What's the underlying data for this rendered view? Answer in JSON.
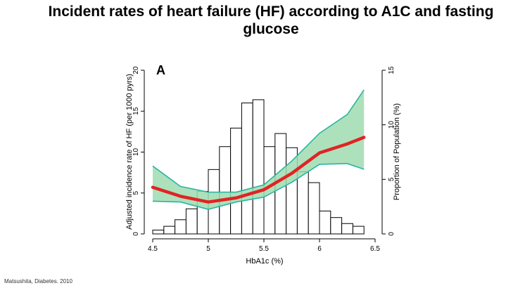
{
  "slide": {
    "title": "Incident rates of heart failure (HF) according to A1C and fasting glucose",
    "citation": "Matsushita, Diabetes. 2010"
  },
  "colors": {
    "curve": "#e02424",
    "ci_fill": "#9fdcb0",
    "ci_line": "#2ab5a0",
    "bars": "#000000"
  },
  "chart_data": {
    "type": "bar+line",
    "panel_label": "A",
    "title": "",
    "xlabel": "HbA1c (%)",
    "ylabel": "Adjusted incidence rate of HF (per 1000 pyrs)",
    "y2label": "Proportion of Population (%)",
    "xlim": [
      4.5,
      6.5
    ],
    "ylim": [
      0,
      20
    ],
    "y2lim": [
      0,
      15
    ],
    "xticks": [
      "4.5",
      "5",
      "5.5",
      "6",
      "6.5"
    ],
    "yticks": [
      "0",
      "5",
      "10",
      "15",
      "20"
    ],
    "y2ticks": [
      "0",
      "5",
      "10",
      "15"
    ],
    "histogram": {
      "axis": "right",
      "bin_width": 0.1,
      "bins": [
        {
          "x": 4.55,
          "value": 0.35
        },
        {
          "x": 4.65,
          "value": 0.7
        },
        {
          "x": 4.75,
          "value": 1.3
        },
        {
          "x": 4.85,
          "value": 2.3
        },
        {
          "x": 4.95,
          "value": 3.9
        },
        {
          "x": 5.05,
          "value": 5.9
        },
        {
          "x": 5.15,
          "value": 8.0
        },
        {
          "x": 5.25,
          "value": 9.7
        },
        {
          "x": 5.35,
          "value": 12.0
        },
        {
          "x": 5.45,
          "value": 12.3
        },
        {
          "x": 5.55,
          "value": 8.0
        },
        {
          "x": 5.65,
          "value": 9.2
        },
        {
          "x": 5.75,
          "value": 7.9
        },
        {
          "x": 5.85,
          "value": 5.7
        },
        {
          "x": 5.95,
          "value": 4.7
        },
        {
          "x": 6.05,
          "value": 2.1
        },
        {
          "x": 6.15,
          "value": 1.5
        },
        {
          "x": 6.25,
          "value": 0.95
        },
        {
          "x": 6.35,
          "value": 0.7
        }
      ]
    },
    "series": [
      {
        "axis": "left",
        "x": [
          4.5,
          4.75,
          5.0,
          5.25,
          5.5,
          5.75,
          6.0,
          6.25,
          6.4
        ],
        "y": [
          5.7,
          4.6,
          3.9,
          4.4,
          5.4,
          7.4,
          9.9,
          11.0,
          11.8
        ],
        "lower": [
          4.0,
          3.9,
          3.0,
          3.9,
          4.5,
          6.3,
          8.5,
          8.6,
          7.9
        ],
        "upper": [
          8.3,
          5.8,
          5.1,
          5.1,
          6.0,
          8.9,
          12.3,
          14.6,
          17.6
        ]
      }
    ]
  }
}
